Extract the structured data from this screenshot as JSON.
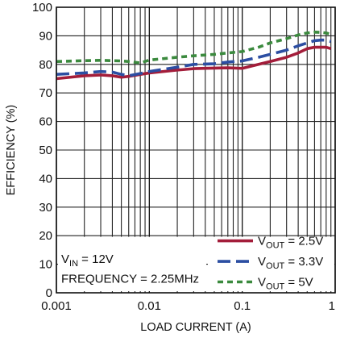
{
  "chart_data": {
    "type": "line",
    "xlabel": "LOAD CURRENT (A)",
    "ylabel": "EFFICIENCY (%)",
    "x_scale": "log",
    "xlim": [
      0.001,
      1
    ],
    "ylim": [
      0,
      100
    ],
    "x_ticks": [
      0.001,
      0.01,
      0.1,
      1
    ],
    "x_tick_labels": [
      "0.001",
      "0.01",
      "0.1",
      "1"
    ],
    "y_ticks": [
      0,
      10,
      20,
      30,
      40,
      50,
      60,
      70,
      80,
      90,
      100
    ],
    "y_tick_labels": [
      "0",
      "10",
      "20",
      "30",
      "40",
      "50",
      "60",
      "70",
      "80",
      "90",
      "100"
    ],
    "grid": true,
    "legend_position": "bottom-right",
    "series": [
      {
        "name_main": "V",
        "name_sub": "OUT",
        "name_rest": " = 2.5V",
        "color": "#a31d3a",
        "dash": "solid",
        "x": [
          0.001,
          0.002,
          0.003,
          0.004,
          0.005,
          0.006,
          0.008,
          0.01,
          0.02,
          0.03,
          0.05,
          0.07,
          0.1,
          0.15,
          0.2,
          0.3,
          0.4,
          0.5,
          0.6,
          0.7,
          0.8,
          0.9
        ],
        "y": [
          75,
          76,
          76.3,
          76,
          75.5,
          75.8,
          76.5,
          77,
          78,
          78.5,
          78.7,
          78.8,
          78.6,
          80,
          81,
          82.5,
          84,
          85.5,
          86,
          86,
          86,
          85.5
        ]
      },
      {
        "name_main": "V",
        "name_sub": "OUT",
        "name_rest": " = 3.3V",
        "color": "#2c4ea2",
        "dash": "long",
        "x": [
          0.001,
          0.002,
          0.003,
          0.004,
          0.005,
          0.006,
          0.008,
          0.01,
          0.02,
          0.03,
          0.05,
          0.07,
          0.1,
          0.15,
          0.2,
          0.3,
          0.4,
          0.5,
          0.6,
          0.7,
          0.8,
          0.9
        ],
        "y": [
          76.5,
          77,
          77.5,
          77.3,
          76.5,
          76,
          76.8,
          77.5,
          79,
          80,
          80.2,
          80.8,
          81.2,
          82.5,
          83.5,
          85,
          86.5,
          87.5,
          88.3,
          88.5,
          88.5,
          88
        ]
      },
      {
        "name_main": "V",
        "name_sub": "OUT",
        "name_rest": " = 5V",
        "color": "#3b8a3e",
        "dash": "short",
        "x": [
          0.001,
          0.002,
          0.003,
          0.004,
          0.005,
          0.006,
          0.008,
          0.01,
          0.02,
          0.03,
          0.05,
          0.07,
          0.1,
          0.15,
          0.2,
          0.3,
          0.4,
          0.5,
          0.6,
          0.7,
          0.8,
          0.9
        ],
        "y": [
          81,
          81.3,
          81.4,
          81.3,
          81.2,
          81,
          80.5,
          81.5,
          82.5,
          83,
          83.5,
          84,
          84.5,
          86,
          87.5,
          89,
          90.3,
          91,
          91.3,
          91.2,
          91,
          90.5
        ]
      }
    ],
    "annotations": [
      {
        "main": "V",
        "sub": "IN",
        "rest": " = 12V"
      },
      {
        "main": "FREQUENCY = 2.25MHz"
      }
    ]
  }
}
